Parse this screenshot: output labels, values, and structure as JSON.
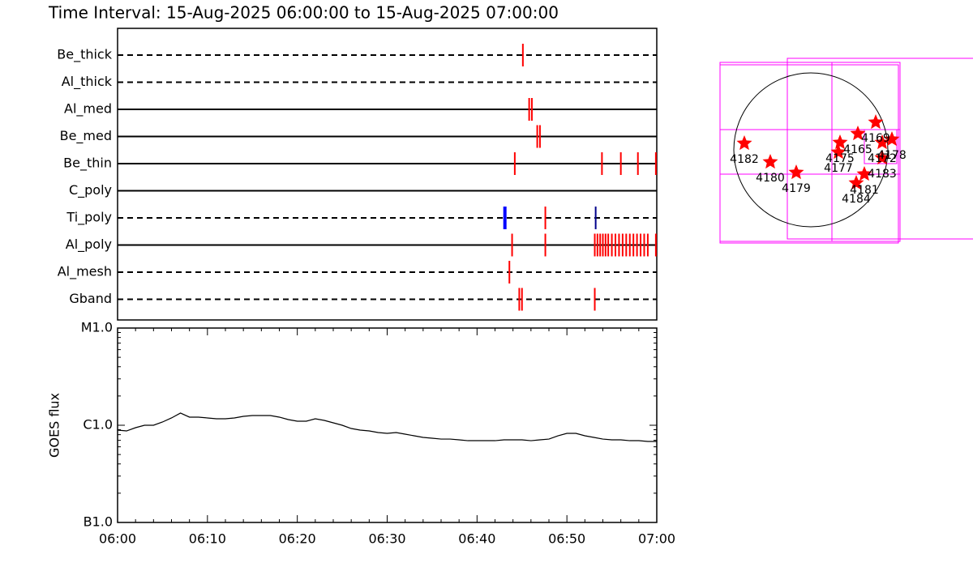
{
  "chart_data": [
    {
      "type": "events",
      "title": "Time Interval: 15-Aug-2025 06:00:00 to 15-Aug-2025 07:00:00",
      "xlim": [
        0,
        60
      ],
      "series": [
        {
          "name": "Be_thick",
          "line": "dashed",
          "color": "#ff0000",
          "values": [
            45.1
          ]
        },
        {
          "name": "Al_thick",
          "line": "dashed",
          "color": "#ff0000",
          "values": []
        },
        {
          "name": "Al_med",
          "line": "solid",
          "color": "#ff0000",
          "values": [
            45.8,
            46.1
          ]
        },
        {
          "name": "Be_med",
          "line": "solid",
          "color": "#ff0000",
          "values": [
            46.7,
            47.0
          ]
        },
        {
          "name": "Be_thin",
          "line": "solid",
          "color": "#ff0000",
          "values": [
            44.2,
            53.9,
            56.0,
            57.9,
            59.9
          ]
        },
        {
          "name": "C_poly",
          "line": "solid",
          "color": "#ff0000",
          "values": []
        },
        {
          "name": "Ti_poly",
          "line": "dashed",
          "colors": [
            "#0000ff",
            "#ff0000",
            "#00008b"
          ],
          "values": [
            43.1,
            47.6,
            53.2
          ]
        },
        {
          "name": "Al_poly",
          "line": "solid",
          "color": "#ff0000",
          "values": [
            43.9,
            47.6,
            53.1,
            53.4,
            53.7,
            54.0,
            54.3,
            54.6,
            55.0,
            55.4,
            55.8,
            56.2,
            56.6,
            57.0,
            57.4,
            57.8,
            58.2,
            58.6,
            59.0,
            59.9
          ]
        },
        {
          "name": "Al_mesh",
          "line": "dashed",
          "color": "#ff0000",
          "values": [
            43.6
          ]
        },
        {
          "name": "Gband",
          "line": "dashed",
          "color": "#ff0000",
          "values": [
            44.7,
            45.0,
            53.1
          ]
        }
      ]
    },
    {
      "type": "line",
      "ylabel": "GOES flux",
      "log": true,
      "color": "#000000",
      "x": [
        0,
        1,
        2,
        3,
        4,
        5,
        6,
        7,
        8,
        9,
        10,
        11,
        12,
        13,
        14,
        15,
        16,
        17,
        18,
        19,
        20,
        21,
        22,
        23,
        24,
        25,
        26,
        27,
        28,
        29,
        30,
        31,
        32,
        33,
        34,
        35,
        36,
        37,
        38,
        39,
        40,
        41,
        42,
        43,
        44,
        45,
        46,
        47,
        48,
        49,
        50,
        51,
        52,
        53,
        54,
        55,
        56,
        57,
        58,
        59,
        60
      ],
      "values": [
        8.91e-07,
        8.74e-07,
        9.44e-07,
        1e-06,
        1e-06,
        1.08e-06,
        1.189e-06,
        1.334e-06,
        1.212e-06,
        1.212e-06,
        1.189e-06,
        1.166e-06,
        1.166e-06,
        1.189e-06,
        1.235e-06,
        1.259e-06,
        1.259e-06,
        1.259e-06,
        1.212e-06,
        1.144e-06,
        1.101e-06,
        1.101e-06,
        1.166e-06,
        1.122e-06,
        1.059e-06,
        1e-06,
        9.26e-07,
        8.91e-07,
        8.74e-07,
        8.41e-07,
        8.25e-07,
        8.41e-07,
        8.1e-07,
        7.79e-07,
        7.5e-07,
        7.36e-07,
        7.21e-07,
        7.21e-07,
        7.08e-07,
        6.94e-07,
        6.94e-07,
        6.94e-07,
        6.94e-07,
        7.08e-07,
        7.08e-07,
        7.08e-07,
        6.94e-07,
        7.08e-07,
        7.21e-07,
        7.79e-07,
        8.25e-07,
        8.25e-07,
        7.79e-07,
        7.5e-07,
        7.21e-07,
        7.08e-07,
        7.08e-07,
        6.94e-07,
        6.94e-07,
        6.81e-07,
        6.81e-07
      ],
      "xlim": [
        0,
        60
      ],
      "xticks": [
        {
          "value": 0,
          "label": "06:00"
        },
        {
          "value": 10,
          "label": "06:10"
        },
        {
          "value": 20,
          "label": "06:20"
        },
        {
          "value": 30,
          "label": "06:30"
        },
        {
          "value": 40,
          "label": "06:40"
        },
        {
          "value": 50,
          "label": "06:50"
        },
        {
          "value": 60,
          "label": "07:00"
        }
      ],
      "xminorticks": [
        2,
        4,
        6,
        8,
        12,
        14,
        16,
        18,
        22,
        24,
        26,
        28,
        32,
        34,
        36,
        38,
        42,
        44,
        46,
        48,
        52,
        54,
        56,
        58
      ],
      "ylim": [
        1e-07,
        1e-05
      ],
      "yticks": [
        {
          "value": 1e-07,
          "label": "B1.0"
        },
        {
          "value": 1e-06,
          "label": "C1.0"
        },
        {
          "value": 1e-05,
          "label": "M1.0"
        }
      ],
      "yminorticks": [
        2e-07,
        3e-07,
        4e-07,
        5e-07,
        6e-07,
        7e-07,
        8e-07,
        9e-07,
        2e-06,
        3e-06,
        4e-06,
        5e-06,
        6e-06,
        7e-06,
        8e-06,
        9e-06
      ]
    },
    {
      "type": "map",
      "color": "#ff0000",
      "labels": [
        "4182",
        "4180",
        "4179",
        "4175",
        "4177",
        "4165",
        "4169",
        "4178",
        "4172",
        "4183",
        "4181",
        "4184"
      ],
      "x": [
        -820,
        -500,
        -180,
        360,
        340,
        580,
        800,
        1000,
        880,
        880,
        660,
        560
      ],
      "y": [
        80,
        -150,
        -280,
        90,
        -30,
        200,
        340,
        130,
        90,
        -100,
        -300,
        -410
      ]
    }
  ]
}
